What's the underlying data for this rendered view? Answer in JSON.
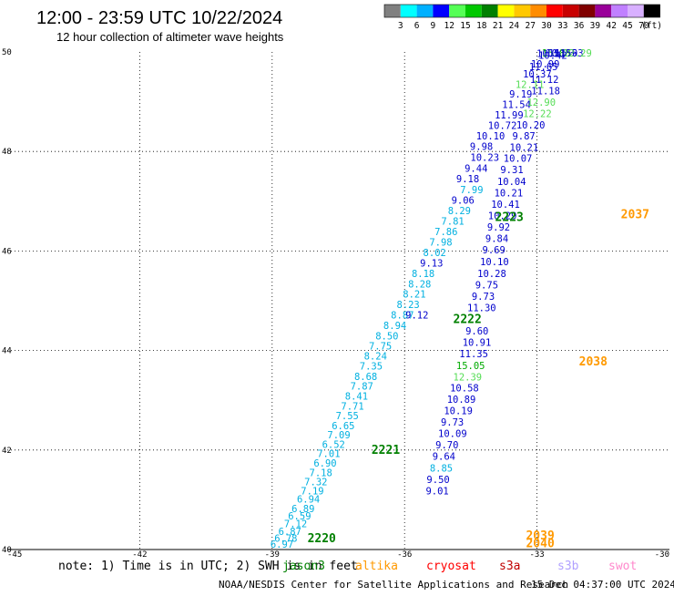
{
  "header": {
    "title": "12:00 - 23:59 UTC 10/22/2024",
    "subtitle": "12 hour collection of altimeter wave heights"
  },
  "color_bar": {
    "swatches": [
      "#808080",
      "#00ffff",
      "#00b0ff",
      "#0000ff",
      "#55ff55",
      "#00c800",
      "#008000",
      "#ffff00",
      "#ffc800",
      "#ff8c00",
      "#ff0000",
      "#c80000",
      "#800000",
      "#990099",
      "#c080ff",
      "#d8b0ff",
      "#000000"
    ],
    "labels": [
      "3",
      "6",
      "9",
      "12",
      "15",
      "18",
      "21",
      "24",
      "27",
      "30",
      "33",
      "36",
      "39",
      "42",
      "45",
      "70"
    ],
    "unit": "(ft)"
  },
  "map": {
    "lon_range": [
      -45,
      -30
    ],
    "lat_range": [
      40,
      50
    ],
    "x_ticks": [
      {
        "v": -45,
        "t": "-45"
      },
      {
        "v": -42,
        "t": "-42"
      },
      {
        "v": -39,
        "t": "-39"
      },
      {
        "v": -36,
        "t": "-36"
      },
      {
        "v": -33,
        "t": "-33"
      },
      {
        "v": -30,
        "t": "-30"
      }
    ],
    "y_ticks": [
      {
        "v": 40,
        "t": "40"
      },
      {
        "v": 42,
        "t": "42"
      },
      {
        "v": 44,
        "t": "44"
      },
      {
        "v": 46,
        "t": "46"
      },
      {
        "v": 48,
        "t": "48"
      },
      {
        "v": 50,
        "t": "50"
      }
    ]
  },
  "colors": {
    "cyan": "#00b0e0",
    "blue": "#0000cc",
    "green": "#00aa00",
    "lightgreen": "#55dd55",
    "darkgreen": "#008000",
    "orange": "#ff9900",
    "red": "#ff0000",
    "darkred": "#c00000",
    "lavender": "#b0a0ff",
    "pink": "#ff88cc"
  },
  "observations": [
    {
      "lon": -39.04,
      "lat": 40.02,
      "v": "6.97",
      "c": "cyan"
    },
    {
      "lon": -38.95,
      "lat": 40.16,
      "v": "6.78",
      "c": "cyan"
    },
    {
      "lon": -38.86,
      "lat": 40.29,
      "v": "6.87",
      "c": "cyan"
    },
    {
      "lon": -38.73,
      "lat": 40.45,
      "v": "7.12",
      "c": "cyan"
    },
    {
      "lon": -38.64,
      "lat": 40.6,
      "v": "6.59",
      "c": "cyan"
    },
    {
      "lon": -38.56,
      "lat": 40.75,
      "v": "6.89",
      "c": "cyan"
    },
    {
      "lon": -38.44,
      "lat": 40.94,
      "v": "6.94",
      "c": "cyan"
    },
    {
      "lon": -38.35,
      "lat": 41.11,
      "v": "7.19",
      "c": "cyan"
    },
    {
      "lon": -38.27,
      "lat": 41.29,
      "v": "7.32",
      "c": "cyan"
    },
    {
      "lon": -38.16,
      "lat": 41.47,
      "v": "7.18",
      "c": "cyan"
    },
    {
      "lon": -38.06,
      "lat": 41.67,
      "v": "6.90",
      "c": "cyan"
    },
    {
      "lon": -37.98,
      "lat": 41.86,
      "v": "7.01",
      "c": "cyan"
    },
    {
      "lon": -37.87,
      "lat": 42.04,
      "v": "6.52",
      "c": "cyan"
    },
    {
      "lon": -37.75,
      "lat": 42.23,
      "v": "7.09",
      "c": "cyan"
    },
    {
      "lon": -37.65,
      "lat": 42.42,
      "v": "6.65",
      "c": "cyan"
    },
    {
      "lon": -37.56,
      "lat": 42.62,
      "v": "7.55",
      "c": "cyan"
    },
    {
      "lon": -37.44,
      "lat": 42.81,
      "v": "7.71",
      "c": "cyan"
    },
    {
      "lon": -37.35,
      "lat": 43.01,
      "v": "8.41",
      "c": "cyan"
    },
    {
      "lon": -37.23,
      "lat": 43.21,
      "v": "7.87",
      "c": "cyan"
    },
    {
      "lon": -37.14,
      "lat": 43.41,
      "v": "8.68",
      "c": "cyan"
    },
    {
      "lon": -37.02,
      "lat": 43.62,
      "v": "7.35",
      "c": "cyan"
    },
    {
      "lon": -36.92,
      "lat": 43.82,
      "v": "8.24",
      "c": "cyan"
    },
    {
      "lon": -36.81,
      "lat": 44.02,
      "v": "7.75",
      "c": "cyan"
    },
    {
      "lon": -36.66,
      "lat": 44.22,
      "v": "8.50",
      "c": "cyan"
    },
    {
      "lon": -36.48,
      "lat": 44.43,
      "v": "8.94",
      "c": "cyan"
    },
    {
      "lon": -36.31,
      "lat": 44.64,
      "v": "8.87",
      "c": "cyan"
    },
    {
      "lon": -35.98,
      "lat": 44.64,
      "v": "9.12",
      "c": "blue"
    },
    {
      "lon": -36.18,
      "lat": 44.85,
      "v": "8.23",
      "c": "cyan"
    },
    {
      "lon": -36.04,
      "lat": 45.06,
      "v": "8.21",
      "c": "cyan"
    },
    {
      "lon": -35.92,
      "lat": 45.27,
      "v": "8.28",
      "c": "cyan"
    },
    {
      "lon": -35.84,
      "lat": 45.48,
      "v": "8.18",
      "c": "cyan"
    },
    {
      "lon": -35.65,
      "lat": 45.69,
      "v": "9.13",
      "c": "blue"
    },
    {
      "lon": -35.58,
      "lat": 45.9,
      "v": "8.02",
      "c": "cyan"
    },
    {
      "lon": -35.44,
      "lat": 46.11,
      "v": "7.98",
      "c": "cyan"
    },
    {
      "lon": -35.32,
      "lat": 46.32,
      "v": "7.86",
      "c": "cyan"
    },
    {
      "lon": -35.17,
      "lat": 46.53,
      "v": "7.81",
      "c": "cyan"
    },
    {
      "lon": -35.02,
      "lat": 46.74,
      "v": "8.29",
      "c": "cyan"
    },
    {
      "lon": -34.94,
      "lat": 46.95,
      "v": "9.06",
      "c": "blue"
    },
    {
      "lon": -34.74,
      "lat": 47.16,
      "v": "7.99",
      "c": "cyan"
    },
    {
      "lon": -34.83,
      "lat": 47.38,
      "v": "9.18",
      "c": "blue"
    },
    {
      "lon": -34.64,
      "lat": 47.59,
      "v": "9.44",
      "c": "blue"
    },
    {
      "lon": -34.51,
      "lat": 47.81,
      "v": "10.23",
      "c": "blue"
    },
    {
      "lon": -34.52,
      "lat": 48.03,
      "v": "9.98",
      "c": "blue"
    },
    {
      "lon": -34.38,
      "lat": 48.24,
      "v": "10.10",
      "c": "blue"
    },
    {
      "lon": -34.11,
      "lat": 48.45,
      "v": "10.72",
      "c": "blue"
    },
    {
      "lon": -33.96,
      "lat": 48.66,
      "v": "11.99",
      "c": "blue"
    },
    {
      "lon": -33.79,
      "lat": 48.87,
      "v": "11.54",
      "c": "blue"
    },
    {
      "lon": -33.63,
      "lat": 49.08,
      "v": "9.19",
      "c": "blue"
    },
    {
      "lon": -33.49,
      "lat": 49.28,
      "v": "12.11",
      "c": "lightgreen"
    },
    {
      "lon": -33.32,
      "lat": 49.49,
      "v": "10.37",
      "c": "blue"
    },
    {
      "lon": -33.14,
      "lat": 49.69,
      "v": "10.99",
      "c": "blue"
    },
    {
      "lon": -33.01,
      "lat": 49.9,
      "v": "10.51",
      "c": "blue"
    },
    {
      "lon": -32.89,
      "lat": 50.12,
      "v": "15.83",
      "c": "green"
    },
    {
      "lon": -32.8,
      "lat": 50.12,
      "v": "10.23",
      "c": "blue"
    },
    {
      "lon": -32.74,
      "lat": 50.31,
      "v": "11.55",
      "c": "blue"
    },
    {
      "lon": -32.6,
      "lat": 50.54,
      "v": "11.93",
      "c": "blue"
    },
    {
      "lon": -32.41,
      "lat": 50.76,
      "v": "12.29",
      "c": "lightgreen"
    },
    {
      "lon": -33.18,
      "lat": 49.63,
      "v": "11.65",
      "c": "blue"
    },
    {
      "lon": -32.97,
      "lat": 49.86,
      "v": "10.42",
      "c": "blue"
    },
    {
      "lon": -33.16,
      "lat": 49.38,
      "v": "11.12",
      "c": "blue"
    },
    {
      "lon": -33.13,
      "lat": 49.15,
      "v": "11.18",
      "c": "blue"
    },
    {
      "lon": -33.23,
      "lat": 48.92,
      "v": "12.90",
      "c": "lightgreen"
    },
    {
      "lon": -33.32,
      "lat": 48.69,
      "v": "12.22",
      "c": "lightgreen"
    },
    {
      "lon": -33.47,
      "lat": 48.46,
      "v": "10.20",
      "c": "blue"
    },
    {
      "lon": -33.56,
      "lat": 48.24,
      "v": "9.87",
      "c": "blue"
    },
    {
      "lon": -33.62,
      "lat": 48.01,
      "v": "10.21",
      "c": "blue"
    },
    {
      "lon": -33.76,
      "lat": 47.79,
      "v": "10.07",
      "c": "blue"
    },
    {
      "lon": -33.83,
      "lat": 47.56,
      "v": "9.31",
      "c": "blue"
    },
    {
      "lon": -33.9,
      "lat": 47.33,
      "v": "10.04",
      "c": "blue"
    },
    {
      "lon": -33.97,
      "lat": 47.1,
      "v": "10.21",
      "c": "blue"
    },
    {
      "lon": -34.04,
      "lat": 46.87,
      "v": "10.41",
      "c": "blue"
    },
    {
      "lon": -34.11,
      "lat": 46.64,
      "v": "10.29",
      "c": "blue"
    },
    {
      "lon": -34.13,
      "lat": 46.41,
      "v": "9.92",
      "c": "blue"
    },
    {
      "lon": -34.17,
      "lat": 46.18,
      "v": "9.84",
      "c": "blue"
    },
    {
      "lon": -34.24,
      "lat": 45.95,
      "v": "9.69",
      "c": "blue"
    },
    {
      "lon": -34.29,
      "lat": 45.71,
      "v": "10.10",
      "c": "blue"
    },
    {
      "lon": -34.35,
      "lat": 45.48,
      "v": "10.28",
      "c": "blue"
    },
    {
      "lon": -34.4,
      "lat": 45.25,
      "v": "9.75",
      "c": "blue"
    },
    {
      "lon": -34.48,
      "lat": 45.02,
      "v": "9.73",
      "c": "blue"
    },
    {
      "lon": -34.58,
      "lat": 44.79,
      "v": "11.30",
      "c": "blue"
    },
    {
      "lon": -34.62,
      "lat": 44.32,
      "v": "9.60",
      "c": "blue"
    },
    {
      "lon": -34.69,
      "lat": 44.09,
      "v": "10.91",
      "c": "blue"
    },
    {
      "lon": -34.76,
      "lat": 43.86,
      "v": "11.35",
      "c": "blue"
    },
    {
      "lon": -34.83,
      "lat": 43.63,
      "v": "15.05",
      "c": "green"
    },
    {
      "lon": -34.9,
      "lat": 43.4,
      "v": "12.39",
      "c": "lightgreen"
    },
    {
      "lon": -34.97,
      "lat": 43.18,
      "v": "10.58",
      "c": "blue"
    },
    {
      "lon": -35.04,
      "lat": 42.95,
      "v": "10.89",
      "c": "blue"
    },
    {
      "lon": -35.11,
      "lat": 42.72,
      "v": "10.19",
      "c": "blue"
    },
    {
      "lon": -35.18,
      "lat": 42.49,
      "v": "9.73",
      "c": "blue"
    },
    {
      "lon": -35.24,
      "lat": 42.26,
      "v": "10.09",
      "c": "blue"
    },
    {
      "lon": -35.3,
      "lat": 42.03,
      "v": "9.70",
      "c": "blue"
    },
    {
      "lon": -35.37,
      "lat": 41.8,
      "v": "9.64",
      "c": "blue"
    },
    {
      "lon": -35.43,
      "lat": 41.57,
      "v": "8.85",
      "c": "cyan"
    },
    {
      "lon": -35.5,
      "lat": 41.34,
      "v": "9.50",
      "c": "blue"
    },
    {
      "lon": -35.52,
      "lat": 41.11,
      "v": "9.01",
      "c": "blue"
    }
  ],
  "pass_labels": [
    {
      "lon": -38.2,
      "lat": 40.15,
      "t": "2220",
      "c": "darkgreen"
    },
    {
      "lon": -36.75,
      "lat": 41.92,
      "t": "2221",
      "c": "darkgreen"
    },
    {
      "lon": -34.9,
      "lat": 44.55,
      "t": "2222",
      "c": "darkgreen"
    },
    {
      "lon": -33.95,
      "lat": 46.6,
      "t": "2223",
      "c": "darkgreen"
    },
    {
      "lon": -33.25,
      "lat": 40.2,
      "t": "2039",
      "c": "orange"
    },
    {
      "lon": -33.25,
      "lat": 40.05,
      "t": "2040",
      "c": "orange"
    },
    {
      "lon": -32.05,
      "lat": 43.7,
      "t": "2038",
      "c": "orange"
    },
    {
      "lon": -31.1,
      "lat": 46.66,
      "t": "2037",
      "c": "orange"
    }
  ],
  "footer": {
    "note": "note: 1) Time is in UTC; 2) SWH is in feet",
    "legend": [
      {
        "t": "jason3",
        "c": "darkgreen"
      },
      {
        "t": "altika",
        "c": "orange"
      },
      {
        "t": "cryosat",
        "c": "red"
      },
      {
        "t": "s3a",
        "c": "darkred"
      },
      {
        "t": "s3b",
        "c": "lavender"
      },
      {
        "t": "swot",
        "c": "pink"
      }
    ],
    "credit": "NOAA/NESDIS Center for Satellite Applications and Research",
    "timestamp": "15 Dec 04:37:00 UTC 2024"
  }
}
